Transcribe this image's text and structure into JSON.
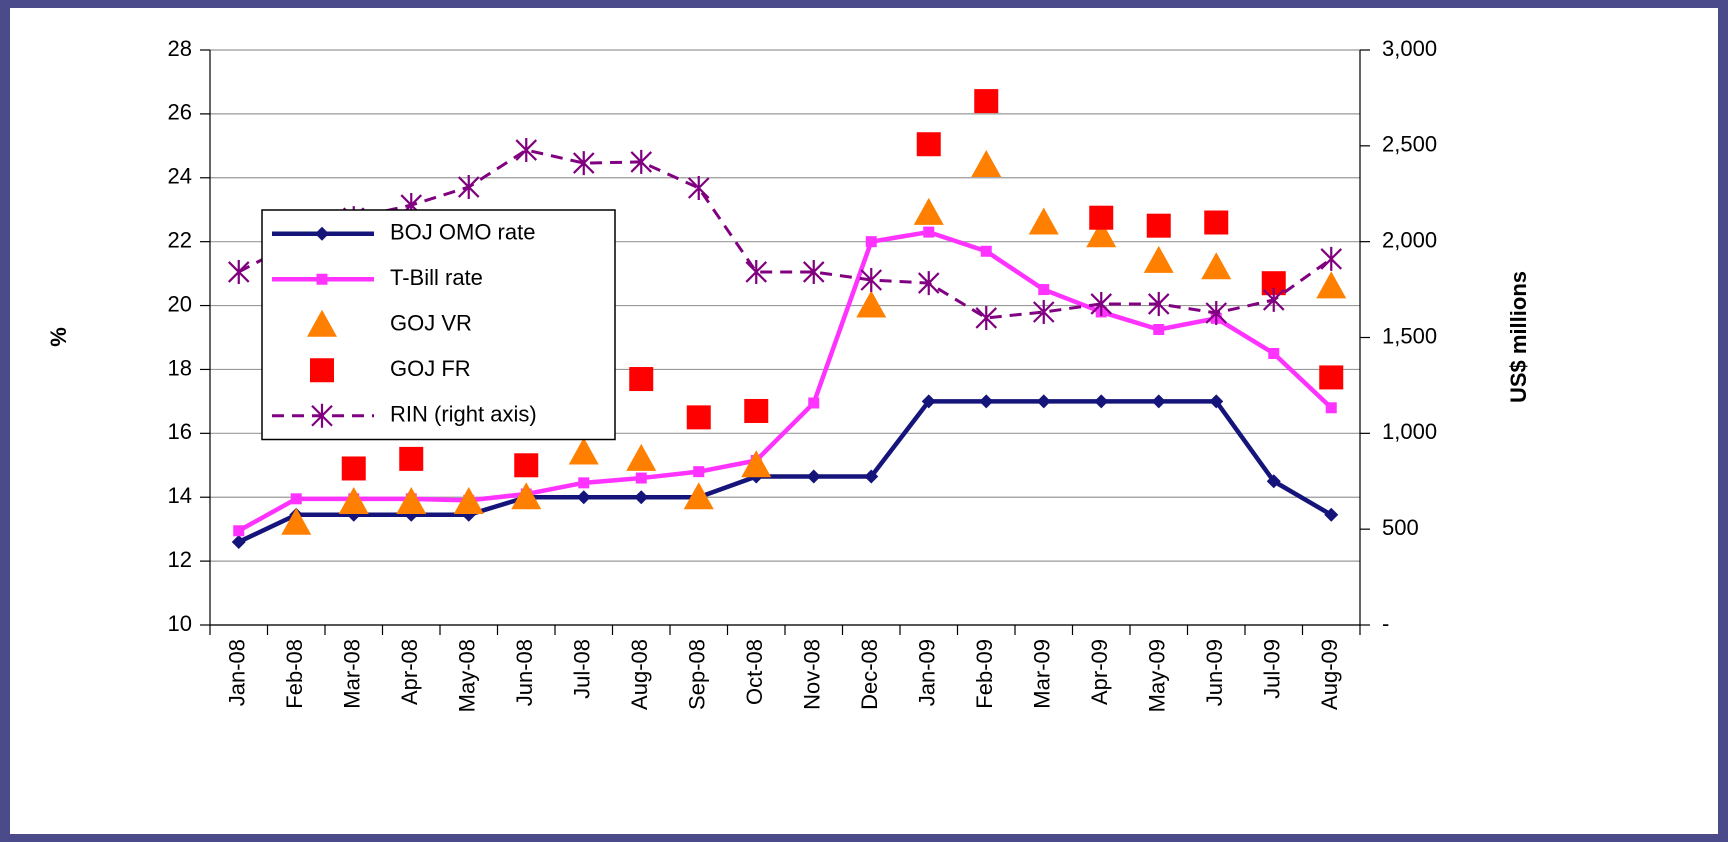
{
  "chart_data": {
    "type": "line",
    "categories": [
      "Jan-08",
      "Feb-08",
      "Mar-08",
      "Apr-08",
      "May-08",
      "Jun-08",
      "Jul-08",
      "Aug-08",
      "Sep-08",
      "Oct-08",
      "Nov-08",
      "Dec-08",
      "Jan-09",
      "Feb-09",
      "Mar-09",
      "Apr-09",
      "May-09",
      "Jun-09",
      "Jul-09",
      "Aug-09"
    ],
    "ylabel": "%",
    "y2label": "US$ millions",
    "ylim": [
      10,
      28
    ],
    "yticks": [
      10,
      12,
      14,
      16,
      18,
      20,
      22,
      24,
      26,
      28
    ],
    "y2lim": [
      0,
      3000
    ],
    "y2ticks": [
      {
        "value": 0,
        "label": "-"
      },
      500,
      {
        "value": 1000,
        "label": "1,000"
      },
      {
        "value": 1500,
        "label": "1,500"
      },
      {
        "value": 2000,
        "label": "2,000"
      },
      {
        "value": 2500,
        "label": "2,500"
      },
      {
        "value": 3000,
        "label": "3,000"
      }
    ],
    "grid": true,
    "legend": "upper left",
    "series": [
      {
        "name": "BOJ OMO rate",
        "color": "#14147a",
        "line": true,
        "marker": "diamond",
        "values": [
          12.6,
          13.45,
          13.45,
          13.45,
          13.45,
          14.0,
          14.0,
          14.0,
          14.0,
          14.65,
          14.65,
          14.65,
          17.0,
          17.0,
          17.0,
          17.0,
          17.0,
          17.0,
          14.5,
          13.45
        ]
      },
      {
        "name": "T-Bill rate",
        "color": "#ff33ff",
        "line": true,
        "marker": "square",
        "values": [
          12.95,
          13.95,
          13.95,
          13.95,
          13.9,
          14.1,
          14.45,
          14.6,
          14.8,
          15.15,
          16.95,
          22.0,
          22.3,
          21.7,
          20.5,
          19.8,
          19.25,
          19.6,
          18.5,
          16.8
        ]
      },
      {
        "name": "GOJ VR",
        "color": "#ff8000",
        "line": false,
        "marker": "triangle",
        "values": [
          null,
          13.2,
          13.85,
          13.85,
          13.85,
          14.0,
          15.4,
          15.2,
          14.0,
          15.0,
          null,
          20.0,
          22.9,
          24.4,
          22.6,
          22.2,
          21.4,
          21.2,
          null,
          20.6
        ]
      },
      {
        "name": "GOJ FR",
        "color": "#ff0000",
        "line": false,
        "marker": "bigsquare",
        "values": [
          null,
          null,
          14.9,
          15.2,
          null,
          15.0,
          null,
          17.7,
          16.5,
          16.7,
          null,
          null,
          25.05,
          26.4,
          null,
          22.75,
          22.5,
          22.6,
          20.7,
          17.75
        ]
      },
      {
        "name": "RIN (right axis)",
        "color": "#800080",
        "line": true,
        "dash": true,
        "marker": "star",
        "axis": "y2",
        "values": [
          1842,
          2000,
          2123,
          2191,
          2285,
          2478,
          2410,
          2416,
          2280,
          1842,
          1842,
          1800,
          1784,
          1602,
          1633,
          1675,
          1675,
          1628,
          1696,
          1910
        ]
      }
    ]
  }
}
